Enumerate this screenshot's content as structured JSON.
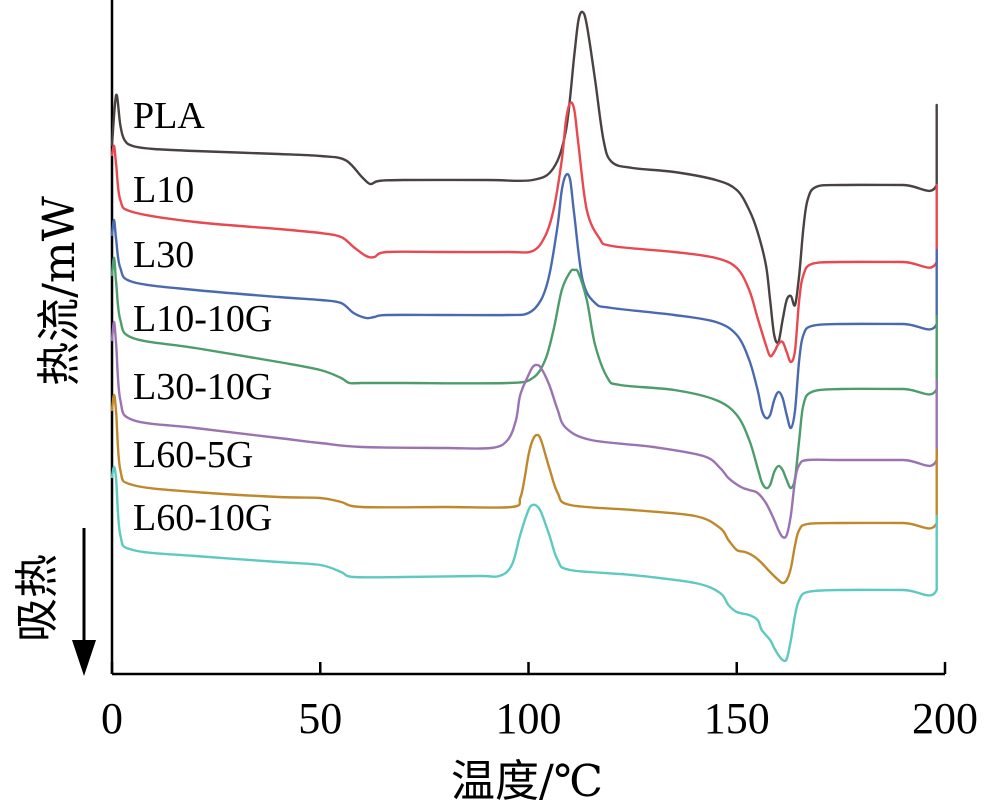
{
  "chart_data": {
    "type": "line",
    "xlabel": "温度/℃",
    "ylabel": "热流/mW",
    "xlim": [
      0,
      200
    ],
    "x_ticks": [
      "0",
      "50",
      "100",
      "150",
      "200"
    ],
    "endo_label": "吸热",
    "endo_direction": "down",
    "grid": false,
    "legend": "inline-left",
    "series": [
      {
        "name": "PLA",
        "color": "#4a4141",
        "points": [
          [
            0,
            145
          ],
          [
            1,
            95
          ],
          [
            2,
            125
          ],
          [
            3,
            140
          ],
          [
            5,
            146
          ],
          [
            10,
            149
          ],
          [
            20,
            151
          ],
          [
            40,
            154
          ],
          [
            50,
            156
          ],
          [
            56,
            160
          ],
          [
            60,
            177
          ],
          [
            62,
            184
          ],
          [
            64,
            181
          ],
          [
            70,
            180
          ],
          [
            90,
            180
          ],
          [
            101,
            180
          ],
          [
            106,
            168
          ],
          [
            109,
            130
          ],
          [
            111,
            55
          ],
          [
            112,
            20
          ],
          [
            113,
            12
          ],
          [
            114,
            25
          ],
          [
            116,
            80
          ],
          [
            118,
            140
          ],
          [
            120,
            162
          ],
          [
            125,
            168
          ],
          [
            135,
            172
          ],
          [
            145,
            180
          ],
          [
            150,
            190
          ],
          [
            153,
            210
          ],
          [
            155,
            232
          ],
          [
            157,
            265
          ],
          [
            158,
            300
          ],
          [
            159,
            335
          ],
          [
            160,
            342
          ],
          [
            161,
            320
          ],
          [
            162,
            300
          ],
          [
            163,
            296
          ],
          [
            164,
            305
          ],
          [
            165,
            275
          ],
          [
            166,
            228
          ],
          [
            167,
            200
          ],
          [
            169,
            187
          ],
          [
            175,
            185
          ],
          [
            190,
            185
          ],
          [
            198,
            185
          ],
          [
            198,
            105
          ]
        ]
      },
      {
        "name": "L10",
        "color": "#e8484f",
        "points": [
          [
            0,
            155
          ],
          [
            0.5,
            146
          ],
          [
            1,
            165
          ],
          [
            2,
            200
          ],
          [
            5,
            212
          ],
          [
            20,
            222
          ],
          [
            40,
            229
          ],
          [
            50,
            233
          ],
          [
            55,
            237
          ],
          [
            58,
            247
          ],
          [
            61,
            256
          ],
          [
            63,
            257
          ],
          [
            66,
            252
          ],
          [
            80,
            252
          ],
          [
            95,
            252
          ],
          [
            101,
            251
          ],
          [
            104,
            236
          ],
          [
            106,
            210
          ],
          [
            108,
            160
          ],
          [
            109,
            120
          ],
          [
            110,
            103
          ],
          [
            111,
            110
          ],
          [
            112,
            145
          ],
          [
            114,
            210
          ],
          [
            117,
            238
          ],
          [
            120,
            246
          ],
          [
            135,
            252
          ],
          [
            145,
            258
          ],
          [
            150,
            268
          ],
          [
            153,
            290
          ],
          [
            155,
            318
          ],
          [
            157,
            345
          ],
          [
            158,
            356
          ],
          [
            159,
            352
          ],
          [
            160,
            344
          ],
          [
            161,
            342
          ],
          [
            162,
            352
          ],
          [
            163,
            362
          ],
          [
            164,
            350
          ],
          [
            165,
            300
          ],
          [
            166,
            275
          ],
          [
            168,
            264
          ],
          [
            175,
            262
          ],
          [
            190,
            262
          ],
          [
            198,
            262
          ],
          [
            198,
            185
          ]
        ]
      },
      {
        "name": "L30",
        "color": "#4a6ab0",
        "points": [
          [
            0,
            235
          ],
          [
            0.5,
            220
          ],
          [
            1,
            240
          ],
          [
            2,
            268
          ],
          [
            5,
            282
          ],
          [
            20,
            290
          ],
          [
            40,
            297
          ],
          [
            50,
            300
          ],
          [
            55,
            303
          ],
          [
            58,
            313
          ],
          [
            61,
            318
          ],
          [
            63,
            317
          ],
          [
            66,
            315
          ],
          [
            80,
            315
          ],
          [
            95,
            315
          ],
          [
            100,
            313
          ],
          [
            103,
            300
          ],
          [
            105,
            275
          ],
          [
            107,
            225
          ],
          [
            108,
            190
          ],
          [
            109,
            175
          ],
          [
            110,
            180
          ],
          [
            111,
            215
          ],
          [
            113,
            280
          ],
          [
            116,
            303
          ],
          [
            120,
            308
          ],
          [
            135,
            315
          ],
          [
            145,
            322
          ],
          [
            150,
            335
          ],
          [
            153,
            360
          ],
          [
            155,
            390
          ],
          [
            156,
            410
          ],
          [
            157,
            418
          ],
          [
            158,
            415
          ],
          [
            159,
            400
          ],
          [
            160,
            392
          ],
          [
            161,
            398
          ],
          [
            162,
            415
          ],
          [
            163,
            428
          ],
          [
            164,
            410
          ],
          [
            165,
            360
          ],
          [
            166,
            335
          ],
          [
            168,
            326
          ],
          [
            175,
            324
          ],
          [
            190,
            324
          ],
          [
            198,
            324
          ],
          [
            198,
            250
          ]
        ]
      },
      {
        "name": "L10-10G",
        "color": "#4c9d6b",
        "points": [
          [
            0,
            275
          ],
          [
            0.5,
            258
          ],
          [
            1,
            283
          ],
          [
            2,
            320
          ],
          [
            5,
            338
          ],
          [
            20,
            348
          ],
          [
            40,
            362
          ],
          [
            50,
            370
          ],
          [
            55,
            378
          ],
          [
            57,
            383
          ],
          [
            60,
            383
          ],
          [
            70,
            383
          ],
          [
            95,
            383
          ],
          [
            101,
            378
          ],
          [
            104,
            360
          ],
          [
            106,
            330
          ],
          [
            108,
            290
          ],
          [
            110,
            272
          ],
          [
            111,
            270
          ],
          [
            112,
            273
          ],
          [
            114,
            300
          ],
          [
            116,
            345
          ],
          [
            119,
            378
          ],
          [
            122,
            385
          ],
          [
            135,
            390
          ],
          [
            145,
            400
          ],
          [
            150,
            415
          ],
          [
            153,
            440
          ],
          [
            155,
            468
          ],
          [
            156,
            482
          ],
          [
            157,
            488
          ],
          [
            158,
            485
          ],
          [
            159,
            472
          ],
          [
            160,
            466
          ],
          [
            161,
            470
          ],
          [
            162,
            480
          ],
          [
            163,
            488
          ],
          [
            164,
            478
          ],
          [
            165,
            440
          ],
          [
            166,
            405
          ],
          [
            168,
            392
          ],
          [
            175,
            389
          ],
          [
            190,
            389
          ],
          [
            198,
            389
          ],
          [
            198,
            316
          ]
        ]
      },
      {
        "name": "L30-10G",
        "color": "#9b72b2",
        "points": [
          [
            0,
            340
          ],
          [
            0.5,
            322
          ],
          [
            1,
            345
          ],
          [
            2,
            400
          ],
          [
            5,
            420
          ],
          [
            20,
            428
          ],
          [
            40,
            438
          ],
          [
            50,
            443
          ],
          [
            60,
            447
          ],
          [
            80,
            448
          ],
          [
            91,
            448
          ],
          [
            95,
            440
          ],
          [
            97,
            420
          ],
          [
            98,
            395
          ],
          [
            100,
            375
          ],
          [
            101,
            367
          ],
          [
            102,
            365
          ],
          [
            103,
            368
          ],
          [
            105,
            385
          ],
          [
            107,
            410
          ],
          [
            109,
            428
          ],
          [
            115,
            440
          ],
          [
            130,
            447
          ],
          [
            142,
            456
          ],
          [
            146,
            468
          ],
          [
            148,
            478
          ],
          [
            151,
            487
          ],
          [
            153,
            490
          ],
          [
            155,
            493
          ],
          [
            157,
            503
          ],
          [
            159,
            520
          ],
          [
            160,
            530
          ],
          [
            161,
            537
          ],
          [
            162,
            535
          ],
          [
            163,
            515
          ],
          [
            164,
            480
          ],
          [
            165,
            465
          ],
          [
            167,
            460
          ],
          [
            175,
            460
          ],
          [
            190,
            460
          ],
          [
            198,
            460
          ],
          [
            198,
            380
          ]
        ]
      },
      {
        "name": "L60-5G",
        "color": "#c0882c",
        "points": [
          [
            0,
            410
          ],
          [
            0.5,
            395
          ],
          [
            1,
            413
          ],
          [
            2,
            470
          ],
          [
            5,
            485
          ],
          [
            20,
            492
          ],
          [
            40,
            497
          ],
          [
            50,
            498
          ],
          [
            55,
            502
          ],
          [
            60,
            507
          ],
          [
            80,
            507
          ],
          [
            96,
            507
          ],
          [
            98,
            498
          ],
          [
            99,
            480
          ],
          [
            100,
            455
          ],
          [
            101,
            440
          ],
          [
            102,
            435
          ],
          [
            103,
            440
          ],
          [
            105,
            468
          ],
          [
            107,
            493
          ],
          [
            110,
            505
          ],
          [
            125,
            510
          ],
          [
            140,
            516
          ],
          [
            146,
            528
          ],
          [
            148,
            540
          ],
          [
            150,
            550
          ],
          [
            152,
            552
          ],
          [
            154,
            556
          ],
          [
            156,
            563
          ],
          [
            158,
            572
          ],
          [
            160,
            580
          ],
          [
            161,
            583
          ],
          [
            162,
            580
          ],
          [
            163,
            568
          ],
          [
            164,
            545
          ],
          [
            165,
            530
          ],
          [
            167,
            524
          ],
          [
            175,
            523
          ],
          [
            190,
            523
          ],
          [
            198,
            523
          ],
          [
            198,
            450
          ]
        ]
      },
      {
        "name": "L60-10G",
        "color": "#5ec9c1",
        "points": [
          [
            0,
            477
          ],
          [
            0.5,
            467
          ],
          [
            1,
            480
          ],
          [
            2,
            535
          ],
          [
            5,
            550
          ],
          [
            20,
            556
          ],
          [
            40,
            562
          ],
          [
            50,
            565
          ],
          [
            55,
            572
          ],
          [
            58,
            577
          ],
          [
            70,
            577
          ],
          [
            88,
            576
          ],
          [
            93,
            576
          ],
          [
            96,
            565
          ],
          [
            98,
            535
          ],
          [
            100,
            510
          ],
          [
            101,
            505
          ],
          [
            102,
            506
          ],
          [
            103,
            512
          ],
          [
            105,
            535
          ],
          [
            107,
            560
          ],
          [
            110,
            570
          ],
          [
            125,
            575
          ],
          [
            140,
            583
          ],
          [
            146,
            593
          ],
          [
            148,
            605
          ],
          [
            150,
            612
          ],
          [
            153,
            615
          ],
          [
            155,
            620
          ],
          [
            156,
            630
          ],
          [
            158,
            640
          ],
          [
            159,
            648
          ],
          [
            160,
            655
          ],
          [
            161,
            660
          ],
          [
            162,
            659
          ],
          [
            163,
            640
          ],
          [
            164,
            615
          ],
          [
            165,
            600
          ],
          [
            167,
            592
          ],
          [
            175,
            590
          ],
          [
            190,
            590
          ],
          [
            198,
            590
          ],
          [
            198,
            516
          ]
        ]
      }
    ]
  }
}
